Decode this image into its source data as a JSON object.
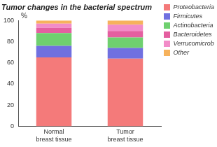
{
  "chart_data": {
    "type": "bar",
    "title": "Tumor changes in the bacterial spectrum",
    "y_label": "%",
    "categories": [
      "Normal breast tissue",
      "Tumor breast tissue"
    ],
    "series": [
      {
        "name": "Proteobacteria",
        "color": "#f47a7a",
        "values": [
          65,
          64
        ]
      },
      {
        "name": "Firmicutes",
        "color": "#7070e0",
        "values": [
          11,
          10
        ]
      },
      {
        "name": "Actinobacteria",
        "color": "#6fd06f",
        "values": [
          12,
          10
        ]
      },
      {
        "name": "Bacteroidetes",
        "color": "#e45fa0",
        "values": [
          5,
          6
        ]
      },
      {
        "name": "Verrucomicrobia",
        "color": "#f28cc8",
        "values": [
          4,
          6
        ]
      },
      {
        "name": "Other",
        "color": "#f6b25c",
        "values": [
          3,
          4
        ]
      }
    ],
    "stacked": true,
    "ylim": [
      0,
      100
    ],
    "yticks": [
      0,
      20,
      40,
      60,
      80,
      100
    ],
    "grid": false,
    "legend": "upper right"
  }
}
